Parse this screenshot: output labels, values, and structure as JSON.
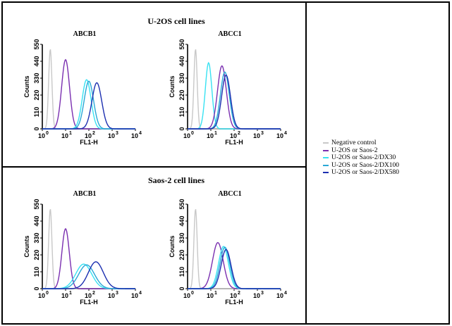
{
  "groups": [
    {
      "title": "U-2OS cell lines"
    },
    {
      "title": "Saos-2 cell lines"
    }
  ],
  "axis": {
    "xlabel": "FL1-H",
    "ylabel": "Counts",
    "x_ticks": [
      "10",
      "10",
      "10",
      "10",
      "10"
    ],
    "x_tick_exponents": [
      "0",
      "1",
      "2",
      "3",
      "4"
    ],
    "y_ticks": [
      "0",
      "110",
      "220",
      "330",
      "440",
      "550"
    ]
  },
  "legend": [
    {
      "label": "Negative control",
      "color": "#c8c8c8"
    },
    {
      "label": "U-2OS or Saos-2",
      "color": "#7a2fb0"
    },
    {
      "label": "U-2OS or Saos-2/DX30",
      "color": "#38e2f2"
    },
    {
      "label": "U-2OS or Saos-2/DX100",
      "color": "#2aa8d6"
    },
    {
      "label": "U-2OS or Saos-2/DX580",
      "color": "#1c2fb0"
    }
  ],
  "chart_data": [
    {
      "type": "area",
      "group": "U-2OS cell lines",
      "title": "ABCB1",
      "xlabel": "FL1-H",
      "ylabel": "Counts",
      "xscale": "log",
      "xlim": [
        1,
        10000
      ],
      "ylim": [
        0,
        550
      ],
      "series": [
        {
          "name": "Negative control",
          "peak_x": 2.2,
          "peak_y": 520,
          "width": 0.07
        },
        {
          "name": "U-2OS or Saos-2",
          "peak_x": 10,
          "peak_y": 450,
          "width": 0.17
        },
        {
          "name": "U-2OS or Saos-2/DX30",
          "peak_x": 80,
          "peak_y": 320,
          "width": 0.19
        },
        {
          "name": "U-2OS or Saos-2/DX100",
          "peak_x": 100,
          "peak_y": 310,
          "width": 0.2
        },
        {
          "name": "U-2OS or Saos-2/DX580",
          "peak_x": 220,
          "peak_y": 300,
          "width": 0.21
        }
      ]
    },
    {
      "type": "area",
      "group": "U-2OS cell lines",
      "title": "ABCC1",
      "xlabel": "FL1-H",
      "ylabel": "Counts",
      "xscale": "log",
      "xlim": [
        1,
        10000
      ],
      "ylim": [
        0,
        550
      ],
      "series": [
        {
          "name": "Negative control",
          "peak_x": 2.2,
          "peak_y": 520,
          "width": 0.07
        },
        {
          "name": "U-2OS or Saos-2/DX30",
          "peak_x": 8,
          "peak_y": 430,
          "width": 0.14
        },
        {
          "name": "U-2OS or Saos-2",
          "peak_x": 30,
          "peak_y": 410,
          "width": 0.19
        },
        {
          "name": "U-2OS or Saos-2/DX100",
          "peak_x": 40,
          "peak_y": 370,
          "width": 0.19
        },
        {
          "name": "U-2OS or Saos-2/DX580",
          "peak_x": 45,
          "peak_y": 350,
          "width": 0.19
        }
      ]
    },
    {
      "type": "area",
      "group": "Saos-2 cell lines",
      "title": "ABCB1",
      "xlabel": "FL1-H",
      "ylabel": "Counts",
      "xscale": "log",
      "xlim": [
        1,
        10000
      ],
      "ylim": [
        0,
        550
      ],
      "series": [
        {
          "name": "Negative control",
          "peak_x": 2.2,
          "peak_y": 520,
          "width": 0.07
        },
        {
          "name": "U-2OS or Saos-2",
          "peak_x": 10,
          "peak_y": 390,
          "width": 0.16
        },
        {
          "name": "U-2OS or Saos-2/DX30",
          "peak_x": 60,
          "peak_y": 160,
          "width": 0.34
        },
        {
          "name": "U-2OS or Saos-2/DX100",
          "peak_x": 80,
          "peak_y": 155,
          "width": 0.34
        },
        {
          "name": "U-2OS or Saos-2/DX580",
          "peak_x": 200,
          "peak_y": 175,
          "width": 0.32
        }
      ]
    },
    {
      "type": "area",
      "group": "Saos-2 cell lines",
      "title": "ABCC1",
      "xlabel": "FL1-H",
      "ylabel": "Counts",
      "xscale": "log",
      "xlim": [
        1,
        10000
      ],
      "ylim": [
        0,
        550
      ],
      "series": [
        {
          "name": "Negative control",
          "peak_x": 2.2,
          "peak_y": 520,
          "width": 0.07
        },
        {
          "name": "U-2OS or Saos-2",
          "peak_x": 20,
          "peak_y": 300,
          "width": 0.23
        },
        {
          "name": "U-2OS or Saos-2/DX30",
          "peak_x": 35,
          "peak_y": 275,
          "width": 0.21
        },
        {
          "name": "U-2OS or Saos-2/DX100",
          "peak_x": 40,
          "peak_y": 270,
          "width": 0.21
        },
        {
          "name": "U-2OS or Saos-2/DX580",
          "peak_x": 45,
          "peak_y": 255,
          "width": 0.21
        }
      ]
    }
  ]
}
